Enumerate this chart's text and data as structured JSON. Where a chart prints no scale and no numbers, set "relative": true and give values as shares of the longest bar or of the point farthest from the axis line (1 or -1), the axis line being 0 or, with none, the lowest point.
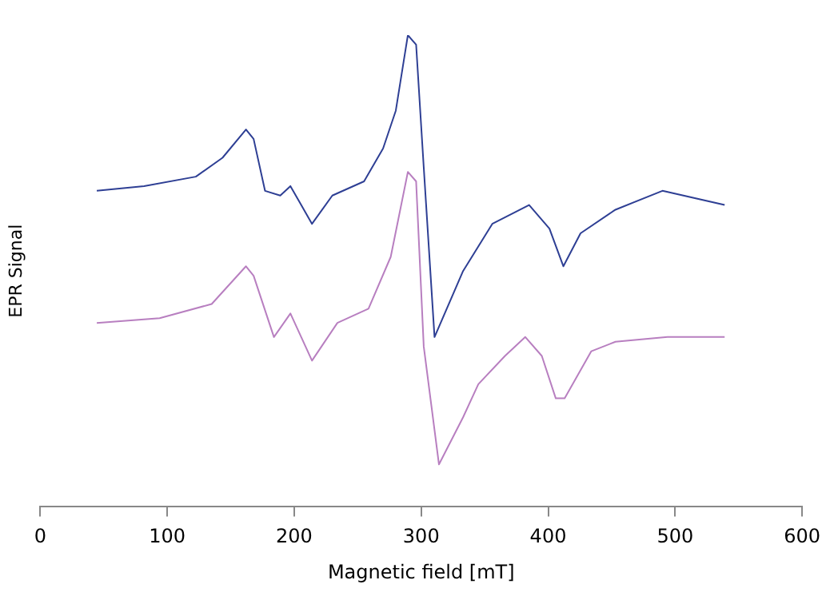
{
  "chart_data": {
    "type": "line",
    "relative": true,
    "xlabel": "Magnetic field [mT]",
    "ylabel": "EPR Signal",
    "xlim": [
      0,
      600
    ],
    "xticks": [
      0,
      100,
      200,
      300,
      400,
      500,
      600
    ],
    "grid": false,
    "legend": false,
    "marker": "none",
    "line_style": "solid",
    "series": [
      {
        "color": "#2e3f94",
        "x": [
          44.5,
          81.7,
          122.5,
          143.5,
          162,
          168,
          177,
          189,
          197,
          214,
          230,
          255,
          270,
          280,
          289.5,
          296,
          302,
          310.5,
          333,
          356,
          385,
          401,
          412,
          425.5,
          453,
          490,
          539
        ],
        "values": [
          0.67,
          0.68,
          0.7,
          0.74,
          0.8,
          0.78,
          0.67,
          0.66,
          0.68,
          0.6,
          0.66,
          0.69,
          0.76,
          0.84,
          1.0,
          0.98,
          0.72,
          0.36,
          0.5,
          0.6,
          0.64,
          0.59,
          0.51,
          0.58,
          0.63,
          0.67,
          0.64
        ]
      },
      {
        "color": "#b87fc0",
        "x": [
          44.5,
          94,
          135,
          162,
          168,
          184,
          197,
          214,
          234,
          258.5,
          276,
          289.5,
          296,
          302,
          314,
          333,
          345,
          366,
          382,
          395,
          406,
          413,
          434,
          453,
          494,
          539
        ],
        "values": [
          0.39,
          0.4,
          0.43,
          0.51,
          0.49,
          0.36,
          0.41,
          0.31,
          0.39,
          0.42,
          0.53,
          0.71,
          0.69,
          0.34,
          0.09,
          0.19,
          0.26,
          0.32,
          0.36,
          0.32,
          0.23,
          0.23,
          0.33,
          0.35,
          0.36,
          0.36
        ]
      }
    ]
  }
}
